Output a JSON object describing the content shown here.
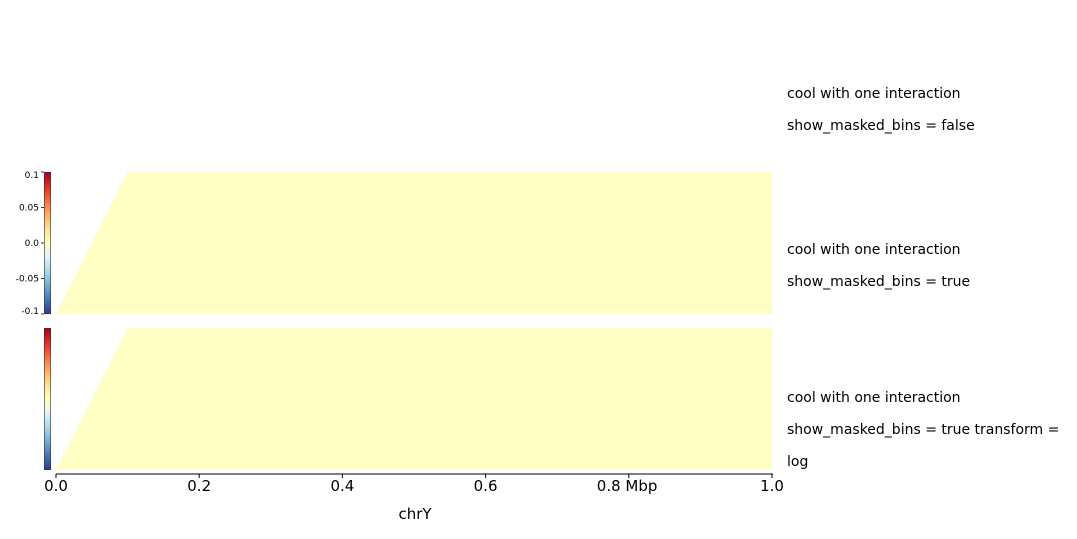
{
  "chart_data": {
    "type": "heatmap",
    "tracks": [
      {
        "label_lines": [
          "cool with one interaction",
          "show_masked_bins = false"
        ],
        "colorbar": false,
        "heatmap": false
      },
      {
        "label_lines": [
          "cool with one interaction",
          "show_masked_bins = true"
        ],
        "colorbar": true,
        "colorbar_ticks": [
          "0.1",
          "0.05",
          "0.0",
          "-0.05",
          "-0.1"
        ],
        "colorbar_tick_values": [
          0.1,
          0.05,
          0.0,
          -0.05,
          -0.1
        ],
        "colorbar_range": [
          -0.1,
          0.1
        ],
        "heatmap": true,
        "fill_color": "#ffffc5"
      },
      {
        "label_lines": [
          "cool with one interaction",
          "show_masked_bins = true transform =",
          "log"
        ],
        "colorbar": true,
        "colorbar_ticks": [],
        "heatmap": true,
        "fill_color": "#ffffc5"
      }
    ],
    "x_axis": {
      "region": "chrY",
      "xlim": [
        0.0,
        1.0
      ],
      "ticks": [
        0.0,
        0.2,
        0.4,
        0.6,
        0.8,
        1.0
      ],
      "tick_labels": [
        "0.0",
        "0.2",
        "0.4",
        "0.6",
        "0.8  Mbp",
        "1.0"
      ],
      "unit": "Mbp"
    },
    "max_depth_fraction": 0.1,
    "colormap": "RdYlBu_r",
    "colormap_stops": [
      "#313695",
      "#4575b4",
      "#74add1",
      "#abd9e9",
      "#e0f3f8",
      "#ffffbf",
      "#fee090",
      "#fdae61",
      "#f46d43",
      "#d73027",
      "#a50026"
    ]
  }
}
